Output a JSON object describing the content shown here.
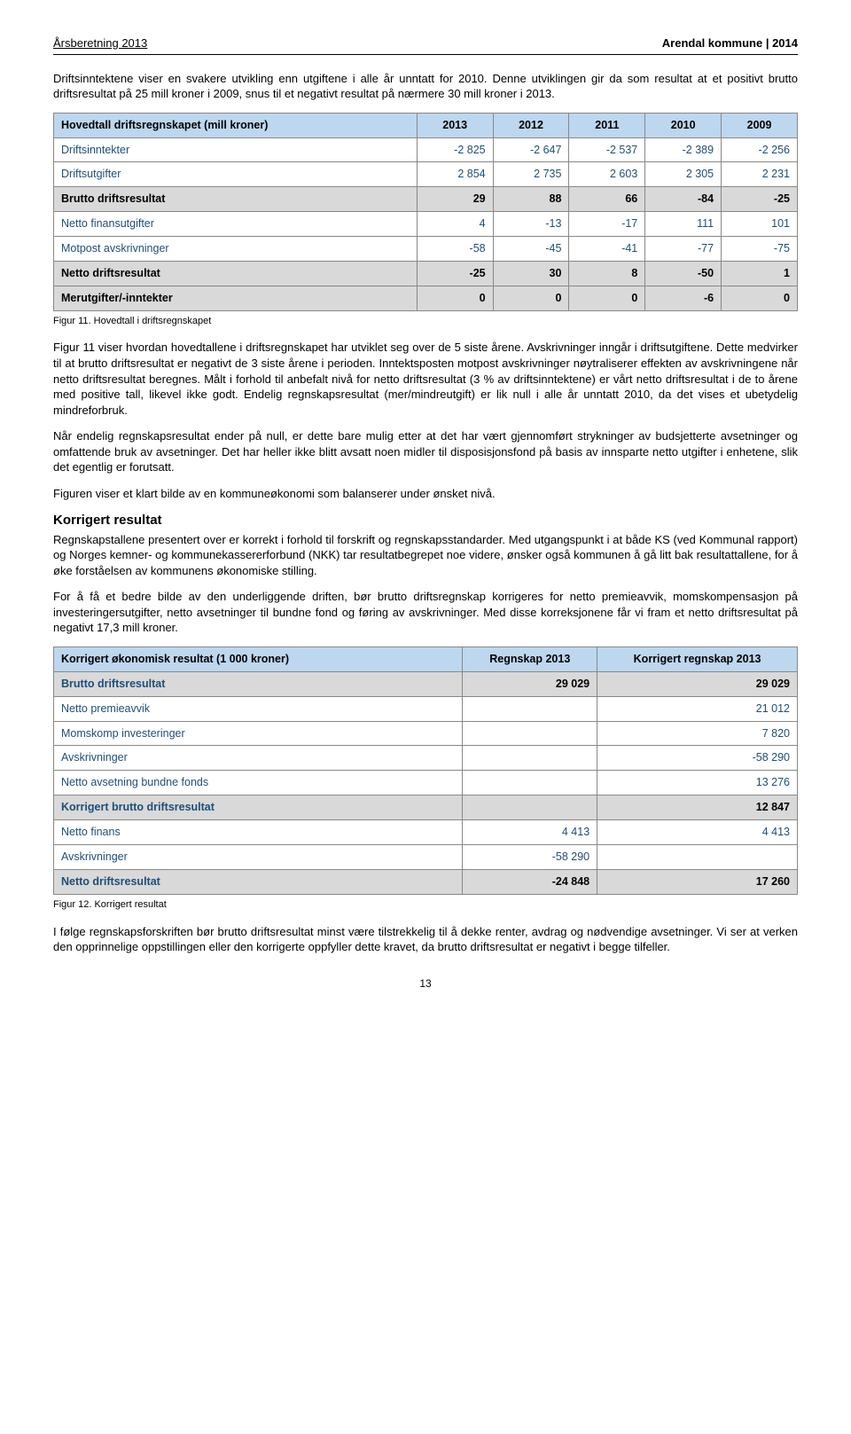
{
  "header": {
    "left": "Årsberetning  2013",
    "right": "Arendal kommune | 2014"
  },
  "intro_para": "Driftsinntektene viser en svakere utvikling enn utgiftene i alle år unntatt for 2010. Denne utviklingen gir da som resultat at et positivt brutto driftsresultat på 25 mill kroner i 2009, snus til et negativt resultat på nærmere 30 mill kroner i 2013.",
  "table1": {
    "header_label": "Hovedtall driftsregnskapet (mill kroner)",
    "years": [
      "2013",
      "2012",
      "2011",
      "2010",
      "2009"
    ],
    "rows": [
      {
        "label": "Driftsinntekter",
        "vals": [
          "-2 825",
          "-2 647",
          "-2 537",
          "-2 389",
          "-2 256"
        ],
        "blue": true,
        "hl": false
      },
      {
        "label": "Driftsutgifter",
        "vals": [
          "2 854",
          "2 735",
          "2 603",
          "2 305",
          "2 231"
        ],
        "blue": true,
        "hl": false
      },
      {
        "label": "Brutto driftsresultat",
        "vals": [
          "29",
          "88",
          "66",
          "-84",
          "-25"
        ],
        "blue": false,
        "hl": true
      },
      {
        "label": "Netto finansutgifter",
        "vals": [
          "4",
          "-13",
          "-17",
          "111",
          "101"
        ],
        "blue": true,
        "hl": false
      },
      {
        "label": "Motpost avskrivninger",
        "vals": [
          "-58",
          "-45",
          "-41",
          "-77",
          "-75"
        ],
        "blue": true,
        "hl": false
      },
      {
        "label": "Netto driftsresultat",
        "vals": [
          "-25",
          "30",
          "8",
          "-50",
          "1"
        ],
        "blue": false,
        "hl": true
      },
      {
        "label": "Merutgifter/-inntekter",
        "vals": [
          "0",
          "0",
          "0",
          "-6",
          "0"
        ],
        "blue": false,
        "hl": true
      }
    ],
    "caption": "Figur 11. Hovedtall i driftsregnskapet"
  },
  "para2": "Figur 11 viser hvordan hovedtallene i driftsregnskapet har utviklet seg over de 5 siste årene. Avskrivninger inngår i driftsutgiftene. Dette medvirker til at brutto driftsresultat er negativt de 3 siste årene i perioden. Inntektsposten motpost avskrivninger nøytraliserer effekten av avskrivningene når netto driftsresultat beregnes. Målt i forhold til anbefalt nivå for netto driftsresultat (3 % av driftsinntektene) er vårt netto driftsresultat i de to årene med positive tall, likevel ikke godt. Endelig regnskapsresultat (mer/mindreutgift) er lik null i alle år unntatt 2010, da det vises et ubetydelig mindreforbruk.",
  "para3": "Når endelig regnskapsresultat ender på null, er dette bare mulig etter at det har vært gjennomført strykninger av budsjetterte avsetninger og omfattende bruk av avsetninger. Det har heller ikke blitt avsatt noen midler til disposisjonsfond på basis av innsparte netto utgifter i enhetene, slik det egentlig er forutsatt.",
  "para4": "Figuren viser et klart bilde av en kommuneøkonomi som balanserer under ønsket nivå.",
  "section_heading": "Korrigert resultat",
  "para5": "Regnskapstallene presentert over er korrekt i forhold til forskrift og regnskapsstandarder. Med utgangspunkt i at både KS (ved Kommunal rapport) og Norges kemner- og kommunekassererforbund (NKK) tar resultatbegrepet noe videre, ønsker også kommunen å gå litt bak resultattallene, for å øke forståelsen av kommunens økonomiske stilling.",
  "para6": "For å få et bedre bilde av den underliggende driften, bør brutto driftsregnskap korrigeres for netto premieavvik, momskompensasjon på investeringersutgifter, netto avsetninger til bundne fond og føring av avskrivninger. Med disse korreksjonene får vi fram et netto driftsresultat på negativt 17,3 mill kroner.",
  "table2": {
    "header_label": "Korrigert økonomisk resultat (1 000 kroner)",
    "cols": [
      "Regnskap 2013",
      "Korrigert regnskap 2013"
    ],
    "rows": [
      {
        "label": "Brutto driftsresultat",
        "vals": [
          "29 029",
          "29 029"
        ],
        "hl": true
      },
      {
        "label": "Netto premieavvik",
        "vals": [
          "",
          "21 012"
        ],
        "hl": false
      },
      {
        "label": "Momskomp investeringer",
        "vals": [
          "",
          "7 820"
        ],
        "hl": false
      },
      {
        "label": "Avskrivninger",
        "vals": [
          "",
          "-58 290"
        ],
        "hl": false
      },
      {
        "label": "Netto avsetning bundne fonds",
        "vals": [
          "",
          "13 276"
        ],
        "hl": false
      },
      {
        "label": "Korrigert brutto driftsresultat",
        "vals": [
          "",
          "12 847"
        ],
        "hl": true
      },
      {
        "label": "Netto finans",
        "vals": [
          "4 413",
          "4 413"
        ],
        "hl": false
      },
      {
        "label": "Avskrivninger",
        "vals": [
          "-58 290",
          ""
        ],
        "hl": false
      },
      {
        "label": "Netto driftsresultat",
        "vals": [
          "-24 848",
          "17 260"
        ],
        "hl": true
      }
    ],
    "caption": "Figur 12. Korrigert resultat"
  },
  "para7": "I følge regnskapsforskriften bør brutto driftsresultat minst være tilstrekkelig til å dekke renter, avdrag og nødvendige avsetninger. Vi ser at verken den opprinnelige oppstillingen eller den korrigerte oppfyller dette kravet, da brutto driftsresultat er negativt i begge tilfeller.",
  "page_number": "13"
}
